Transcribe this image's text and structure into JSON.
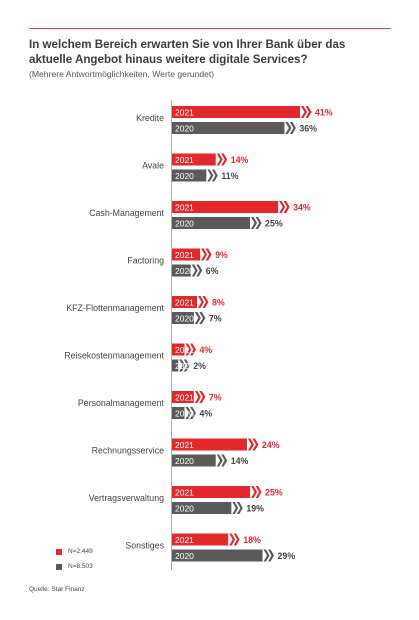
{
  "title_line1": "In welchem Bereich erwarten Sie von Ihrer Bank über das",
  "title_line2": "aktuelle Angebot hinaus weitere digitale Services?",
  "subtitle": "(Mehrere Antwortmöglichkeiten, Werte gerundet)",
  "legend": [
    {
      "text": "N=2.449",
      "color": "#e2282a"
    },
    {
      "text": "N=8.503",
      "color": "#5a5a5a"
    }
  ],
  "source": "Quelle: Star Finanz",
  "chart_data": {
    "type": "bar",
    "orientation": "horizontal",
    "categories": [
      "Kredite",
      "Avale",
      "Cash-Management",
      "Factoring",
      "KFZ-Flottenmanagement",
      "Reisekostenmanagement",
      "Personalmanagement",
      "Rechnungsservice",
      "Vertragsverwaltung",
      "Sonstiges"
    ],
    "series": [
      {
        "name": "2021",
        "color": "#e2282a",
        "values": [
          41,
          14,
          34,
          9,
          8,
          4,
          7,
          24,
          25,
          18
        ],
        "labels": [
          "41%",
          "14%",
          "34%",
          "9%",
          "8%",
          "4%",
          "7%",
          "24%",
          "25%",
          "18%"
        ]
      },
      {
        "name": "2020",
        "color": "#5a5a5a",
        "values": [
          36,
          11,
          25,
          6,
          7,
          2,
          4,
          14,
          19,
          29
        ],
        "labels": [
          "36%",
          "11%",
          "25%",
          "6%",
          "7%",
          "2%",
          "4%",
          "14%",
          "19%",
          "29%"
        ]
      }
    ],
    "unit": "%",
    "xlim": [
      0,
      41
    ],
    "grid": false,
    "legend_position": "bottom-left"
  }
}
